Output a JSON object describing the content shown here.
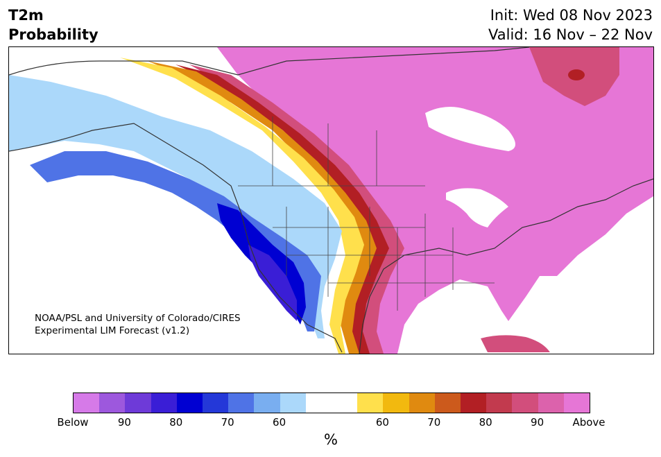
{
  "title": {
    "left_line1": "T2m",
    "left_line2": "Probability"
  },
  "header": {
    "init": "Init: Wed 08 Nov 2023",
    "valid": "Valid: 16 Nov – 22 Nov"
  },
  "credit": {
    "line1": "NOAA/PSL and University of Colorado/CIRES",
    "line2": "Experimental LIM Forecast (v1.2)"
  },
  "colorbar": {
    "unit_label": "%",
    "colors": [
      "#d67ae8",
      "#9d58dd",
      "#6e3ad8",
      "#3a1ed6",
      "#0000d2",
      "#2438d8",
      "#4f73e6",
      "#79aef0",
      "#abd8fa",
      "#ffffff",
      "#ffffff",
      "#ffe04c",
      "#f2b90f",
      "#e08a10",
      "#cc5a1c",
      "#b21f24",
      "#c23a4e",
      "#d24e7c",
      "#dc62ac",
      "#e676d6"
    ],
    "tick_labels": [
      "Below",
      "90",
      "80",
      "70",
      "60",
      "60",
      "70",
      "80",
      "90",
      "Above"
    ]
  },
  "map_colors": {
    "above_magenta": "#e676d6",
    "above_pink": "#d24e7c",
    "above_red": "#b21f24",
    "above_orange": "#e08a10",
    "above_yellow": "#ffe04c",
    "below_lightblue": "#abd8fa",
    "below_blue": "#4f73e6",
    "below_deepblue": "#0000d2",
    "below_purple": "#3a1ed6",
    "coastline": "#333333"
  }
}
